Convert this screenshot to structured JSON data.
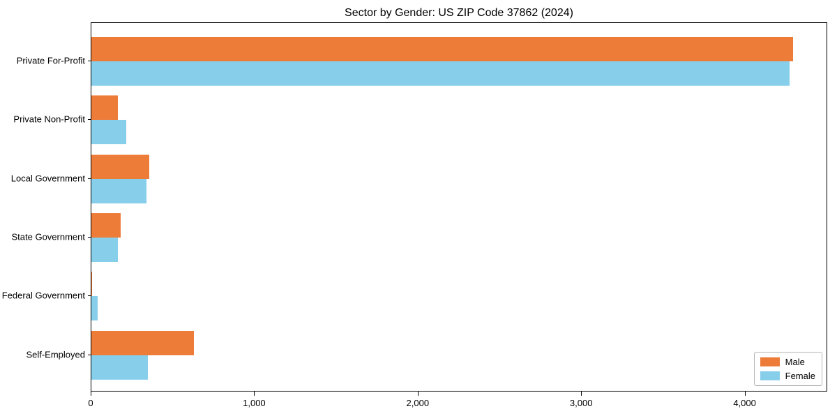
{
  "chart_data": {
    "type": "bar",
    "orientation": "horizontal",
    "title": "Sector by Gender: US ZIP Code 37862 (2024)",
    "categories": [
      "Private For-Profit",
      "Private Non-Profit",
      "Local Government",
      "State Government",
      "Federal Government",
      "Self-Employed"
    ],
    "series": [
      {
        "name": "Male",
        "color": "#ED7C39",
        "values": [
          4290,
          160,
          355,
          180,
          5,
          625
        ]
      },
      {
        "name": "Female",
        "color": "#87CEEB",
        "values": [
          4270,
          215,
          335,
          160,
          40,
          345
        ]
      }
    ],
    "xlabel": "",
    "ylabel": "",
    "xlim": [
      0,
      4505
    ],
    "xticks": [
      0,
      1000,
      2000,
      3000,
      4000
    ],
    "xtick_labels": [
      "0",
      "1,000",
      "2,000",
      "3,000",
      "4,000"
    ],
    "grid": false,
    "legend": {
      "position": "lower right",
      "labels": [
        "Male",
        "Female"
      ]
    }
  },
  "colors": {
    "axis": "#000000",
    "text": "#000000",
    "legend_border": "#b3b3b3",
    "background": "#ffffff"
  }
}
